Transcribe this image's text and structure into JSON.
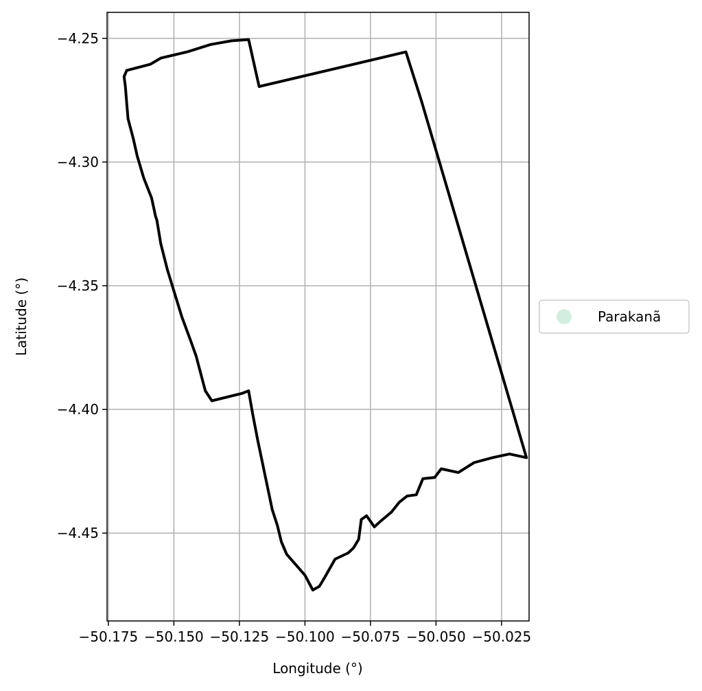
{
  "chart_data": {
    "type": "map",
    "title": "",
    "xlabel": "Longitude (°)",
    "ylabel": "Latitude (°)",
    "xlim": [
      -50.1755,
      -50.0145
    ],
    "ylim": [
      -4.4855,
      -4.2395
    ],
    "xticks": [
      -50.175,
      -50.15,
      -50.125,
      -50.1,
      -50.075,
      -50.05,
      -50.025
    ],
    "xtick_labels": [
      "−50.175",
      "−50.150",
      "−50.125",
      "−50.100",
      "−50.075",
      "−50.050",
      "−50.025"
    ],
    "yticks": [
      -4.25,
      -4.3,
      -4.35,
      -4.4,
      -4.45
    ],
    "ytick_labels": [
      "−4.25",
      "−4.30",
      "−4.35",
      "−4.40",
      "−4.45"
    ],
    "grid": true,
    "legend": {
      "placement": "outside-right",
      "entries": [
        {
          "label": "Parakanã",
          "color": "#d2eee0"
        }
      ]
    },
    "boundary_color": "#000000",
    "boundary": [
      [
        -50.168,
        -4.263
      ],
      [
        -50.159,
        -4.2605
      ],
      [
        -50.155,
        -4.258
      ],
      [
        -50.145,
        -4.2555
      ],
      [
        -50.136,
        -4.2525
      ],
      [
        -50.128,
        -4.251
      ],
      [
        -50.1215,
        -4.2505
      ],
      [
        -50.1175,
        -4.2695
      ],
      [
        -50.0615,
        -4.2555
      ],
      [
        -50.0555,
        -4.2755
      ],
      [
        -50.0155,
        -4.4195
      ],
      [
        -50.022,
        -4.418
      ],
      [
        -50.0285,
        -4.4195
      ],
      [
        -50.0355,
        -4.4215
      ],
      [
        -50.0415,
        -4.4255
      ],
      [
        -50.048,
        -4.424
      ],
      [
        -50.0505,
        -4.4275
      ],
      [
        -50.055,
        -4.428
      ],
      [
        -50.0575,
        -4.4345
      ],
      [
        -50.061,
        -4.435
      ],
      [
        -50.064,
        -4.4375
      ],
      [
        -50.067,
        -4.4415
      ],
      [
        -50.0715,
        -4.4455
      ],
      [
        -50.0735,
        -4.4475
      ],
      [
        -50.0765,
        -4.443
      ],
      [
        -50.0785,
        -4.4445
      ],
      [
        -50.0795,
        -4.4525
      ],
      [
        -50.0815,
        -4.456
      ],
      [
        -50.0835,
        -4.458
      ],
      [
        -50.0885,
        -4.4605
      ],
      [
        -50.0925,
        -4.468
      ],
      [
        -50.0945,
        -4.4715
      ],
      [
        -50.097,
        -4.473
      ],
      [
        -50.1,
        -4.467
      ],
      [
        -50.107,
        -4.4585
      ],
      [
        -50.109,
        -4.4535
      ],
      [
        -50.1105,
        -4.447
      ],
      [
        -50.1125,
        -4.4405
      ],
      [
        -50.118,
        -4.4125
      ],
      [
        -50.12,
        -4.4015
      ],
      [
        -50.1215,
        -4.3925
      ],
      [
        -50.124,
        -4.3935
      ],
      [
        -50.1355,
        -4.3965
      ],
      [
        -50.138,
        -4.3925
      ],
      [
        -50.14,
        -4.3845
      ],
      [
        -50.1415,
        -4.3785
      ],
      [
        -50.1435,
        -4.3725
      ],
      [
        -50.147,
        -4.3625
      ],
      [
        -50.1525,
        -4.3435
      ],
      [
        -50.155,
        -4.333
      ],
      [
        -50.1565,
        -4.3235
      ],
      [
        -50.157,
        -4.322
      ],
      [
        -50.1585,
        -4.3145
      ],
      [
        -50.1615,
        -4.3065
      ],
      [
        -50.164,
        -4.2975
      ],
      [
        -50.1655,
        -4.2905
      ],
      [
        -50.1675,
        -4.2825
      ],
      [
        -50.168,
        -4.276
      ],
      [
        -50.1685,
        -4.2695
      ],
      [
        -50.169,
        -4.2655
      ],
      [
        -50.168,
        -4.263
      ]
    ]
  }
}
